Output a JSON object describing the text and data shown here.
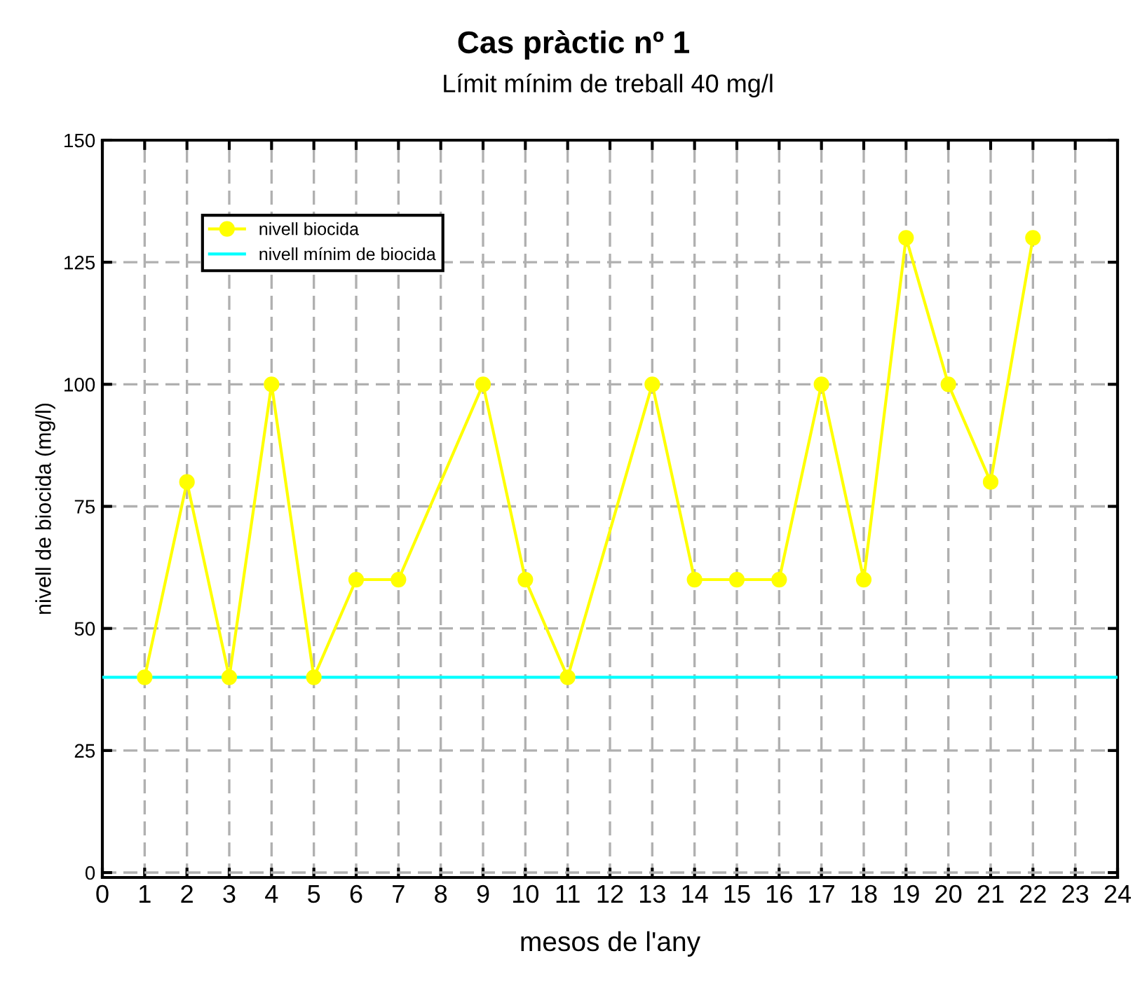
{
  "chart_data": {
    "type": "line",
    "title": "Cas pràctic nº 1",
    "subtitle": "Límit mínim de treball 40 mg/l",
    "xlabel": "mesos de l'any",
    "ylabel": "nivell de biocida (mg/l)",
    "series": [
      {
        "name": "nivell biocida",
        "color": "#ffff00",
        "x": [
          1,
          2,
          3,
          4,
          5,
          6,
          7,
          9,
          10,
          11,
          13,
          14,
          15,
          16,
          17,
          18,
          19,
          20,
          21,
          22
        ],
        "values": [
          40,
          80,
          40,
          100,
          40,
          60,
          60,
          100,
          60,
          40,
          100,
          60,
          60,
          60,
          100,
          60,
          130,
          100,
          80,
          130
        ]
      }
    ],
    "ref_lines": [
      {
        "axis": "y",
        "value": 40,
        "label": "nivell mínim de biocida",
        "color": "#00ffff"
      }
    ],
    "xlim": [
      0,
      24
    ],
    "xticks": [
      0,
      1,
      2,
      3,
      4,
      5,
      6,
      7,
      8,
      9,
      10,
      11,
      12,
      13,
      14,
      15,
      16,
      17,
      18,
      19,
      20,
      21,
      22,
      23,
      24
    ],
    "ylim": [
      -1,
      150
    ],
    "yticks": [
      0,
      25,
      50,
      75,
      100,
      125,
      150
    ],
    "grid": true,
    "legend": "top left",
    "marker": "circle",
    "line_style": "solid"
  }
}
